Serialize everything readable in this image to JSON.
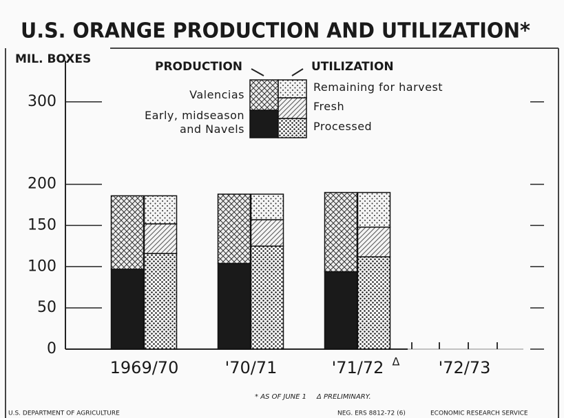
{
  "chart_data": {
    "type": "stacked-bar",
    "title": "U.S. ORANGE PRODUCTION AND UTILIZATION*",
    "y_label": "MIL. BOXES",
    "categories": [
      "1969/70",
      "'70/71",
      "'71/72",
      "'72/73"
    ],
    "category_note": {
      "index": 2,
      "text": "Δ"
    },
    "stacks": [
      "PRODUCTION",
      "UTILIZATION"
    ],
    "series": [
      {
        "name": "Early, midseason and Navels",
        "stack": 0,
        "color": "#1a1a1a",
        "pattern": "solid",
        "values": [
          97,
          104,
          94,
          null
        ]
      },
      {
        "name": "Valencias",
        "stack": 0,
        "color": "#1a1a1a",
        "pattern": "crosshatch",
        "values": [
          89,
          84,
          96,
          null
        ]
      },
      {
        "name": "Processed",
        "stack": 1,
        "color": "#1a1a1a",
        "pattern": "dots",
        "values": [
          116,
          125,
          112,
          null
        ]
      },
      {
        "name": "Fresh",
        "stack": 1,
        "color": "#1a1a1a",
        "pattern": "diagonal",
        "values": [
          36,
          32,
          36,
          null
        ]
      },
      {
        "name": "Remaining for harvest",
        "stack": 1,
        "color": "#1a1a1a",
        "pattern": "fine-dots",
        "values": [
          34,
          31,
          42,
          null
        ]
      }
    ],
    "ylim": [
      0,
      350
    ],
    "yticks": [
      0,
      50,
      100,
      150,
      200,
      300
    ],
    "footnotes": [
      "* AS OF JUNE 1",
      "Δ PRELIMINARY."
    ],
    "credits": [
      "U.S. DEPARTMENT OF AGRICULTURE",
      "NEG. ERS 8812-72 (6)",
      "ECONOMIC RESEARCH SERVICE"
    ]
  }
}
